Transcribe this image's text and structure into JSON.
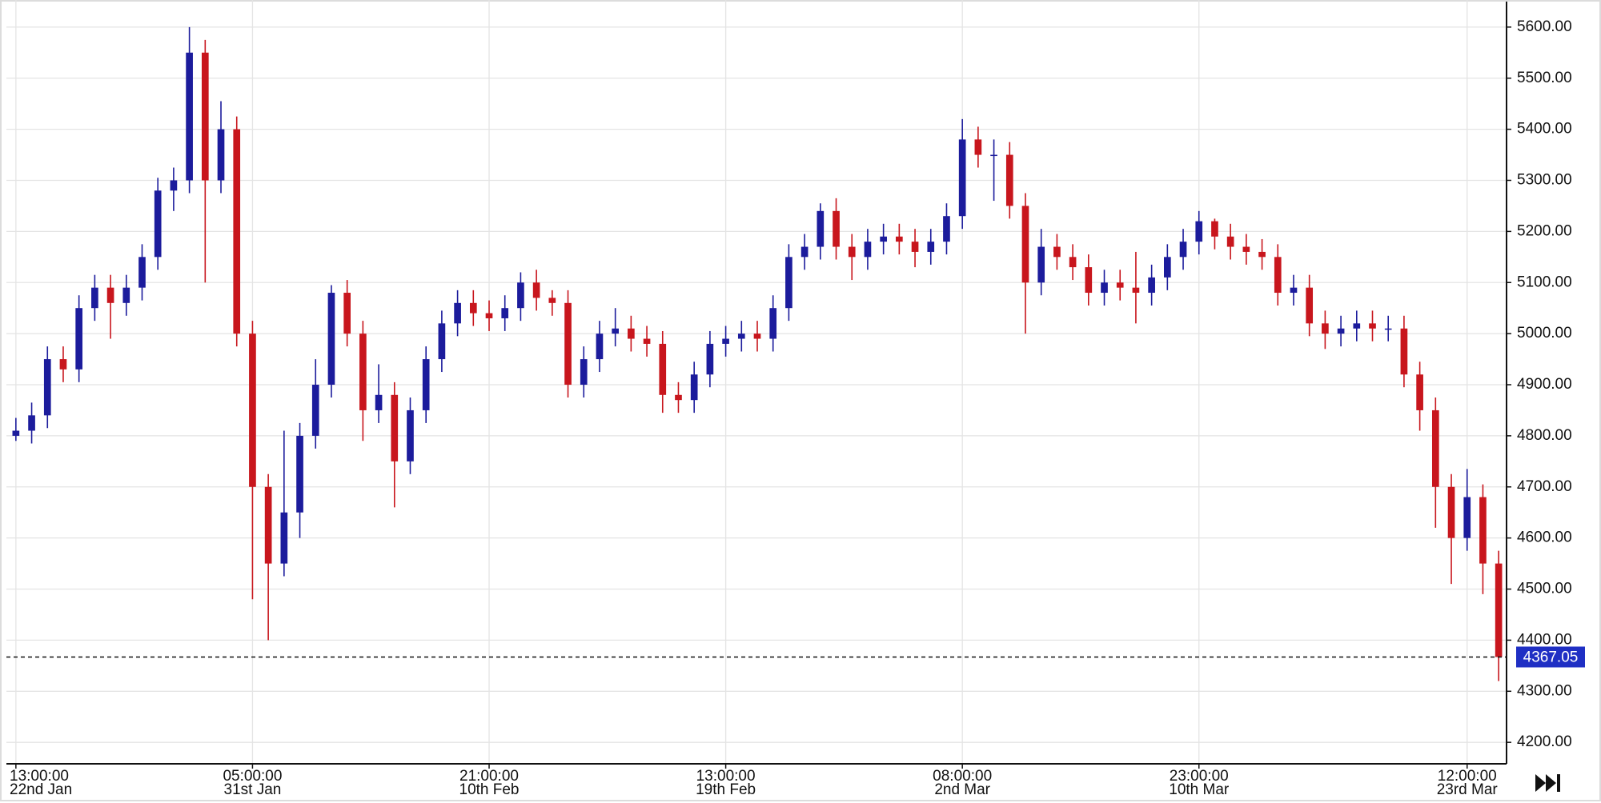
{
  "chart_data": {
    "type": "candlestick",
    "xlim": [
      -0.5,
      94.5
    ],
    "xticks": [
      {
        "value": 0,
        "label": "13:00:00",
        "date": "22nd Jan"
      },
      {
        "value": 15,
        "label": "05:00:00",
        "date": "31st Jan"
      },
      {
        "value": 30,
        "label": "21:00:00",
        "date": "10th Feb"
      },
      {
        "value": 45,
        "label": "13:00:00",
        "date": "19th Feb"
      },
      {
        "value": 60,
        "label": "08:00:00",
        "date": "2nd Mar"
      },
      {
        "value": 75,
        "label": "23:00:00",
        "date": "10th Mar"
      },
      {
        "value": 92,
        "label": "12:00:00",
        "date": "23rd Mar"
      }
    ],
    "ylim": [
      4158,
      5653
    ],
    "yticks": [
      {
        "value": 4200,
        "label": "4200.00"
      },
      {
        "value": 4300,
        "label": "4300.00"
      },
      {
        "value": 4400,
        "label": "4400.00"
      },
      {
        "value": 4500,
        "label": "4500.00"
      },
      {
        "value": 4600,
        "label": "4600.00"
      },
      {
        "value": 4700,
        "label": "4700.00"
      },
      {
        "value": 4800,
        "label": "4800.00"
      },
      {
        "value": 4900,
        "label": "4900.00"
      },
      {
        "value": 5000,
        "label": "5000.00"
      },
      {
        "value": 5100,
        "label": "5100.00"
      },
      {
        "value": 5200,
        "label": "5200.00"
      },
      {
        "value": 5300,
        "label": "5300.00"
      },
      {
        "value": 5400,
        "label": "5400.00"
      },
      {
        "value": 5500,
        "label": "5500.00"
      },
      {
        "value": 5600,
        "label": "5600.00"
      }
    ],
    "grid": true,
    "up_color": "#1c1c9c",
    "down_color": "#c8161d",
    "last_price": {
      "value": 4367.05,
      "label": "4367.05"
    },
    "last_price_color": "#1f2fc4",
    "open": [
      4800,
      4810,
      4840,
      4950,
      4930,
      5050,
      5090,
      5060,
      5090,
      5150,
      5280,
      5300,
      5550,
      5300,
      5400,
      5000,
      4700,
      4550,
      4650,
      4800,
      4900,
      5080,
      5000,
      4850,
      4880,
      4750,
      4850,
      4950,
      5020,
      5060,
      5040,
      5030,
      5050,
      5100,
      5070,
      5060,
      4900,
      4950,
      5000,
      5010,
      4990,
      4980,
      4880,
      4870,
      4920,
      4980,
      4990,
      5000,
      4990,
      5050,
      5150,
      5170,
      5240,
      5170,
      5150,
      5180,
      5190,
      5180,
      5160,
      5180,
      5230,
      5380,
      5350,
      5350,
      5250,
      5100,
      5170,
      5150,
      5130,
      5080,
      5100,
      5090,
      5080,
      5110,
      5150,
      5180,
      5220,
      5190,
      5170,
      5160,
      5150,
      5080,
      5090,
      5020,
      5000,
      5010,
      5020,
      5010,
      5010,
      4920,
      4850,
      4700,
      4600,
      4680,
      4550
    ],
    "high": [
      4835,
      4865,
      4975,
      4975,
      5075,
      5115,
      5115,
      5115,
      5175,
      5305,
      5325,
      5600,
      5575,
      5455,
      5425,
      5025,
      4725,
      4810,
      4825,
      4950,
      5095,
      5105,
      5025,
      4940,
      4905,
      4875,
      4975,
      5045,
      5085,
      5085,
      5065,
      5075,
      5120,
      5125,
      5085,
      5085,
      4975,
      5025,
      5050,
      5035,
      5015,
      5005,
      4905,
      4945,
      5005,
      5015,
      5025,
      5025,
      5075,
      5175,
      5195,
      5255,
      5265,
      5195,
      5205,
      5215,
      5215,
      5205,
      5205,
      5255,
      5420,
      5405,
      5380,
      5375,
      5275,
      5205,
      5195,
      5175,
      5155,
      5125,
      5125,
      5160,
      5135,
      5175,
      5205,
      5240,
      5225,
      5215,
      5195,
      5185,
      5175,
      5115,
      5115,
      5045,
      5035,
      5045,
      5045,
      5035,
      5035,
      4945,
      4875,
      4725,
      4735,
      4705,
      4575
    ],
    "low": [
      4790,
      4785,
      4815,
      4905,
      4905,
      5025,
      4990,
      5035,
      5065,
      5125,
      5240,
      5275,
      5100,
      5275,
      4975,
      4480,
      4400,
      4525,
      4600,
      4775,
      4875,
      4975,
      4790,
      4825,
      4660,
      4725,
      4825,
      4925,
      4995,
      5015,
      5005,
      5005,
      5025,
      5045,
      5035,
      4875,
      4875,
      4925,
      4975,
      4965,
      4955,
      4845,
      4845,
      4845,
      4895,
      4955,
      4965,
      4965,
      4965,
      5025,
      5125,
      5145,
      5145,
      5105,
      5125,
      5155,
      5155,
      5130,
      5135,
      5155,
      5205,
      5325,
      5260,
      5225,
      5000,
      5075,
      5125,
      5105,
      5055,
      5055,
      5065,
      5020,
      5055,
      5085,
      5125,
      5155,
      5165,
      5145,
      5135,
      5125,
      5055,
      5055,
      4995,
      4970,
      4975,
      4985,
      4985,
      4985,
      4895,
      4810,
      4620,
      4510,
      4575,
      4490,
      4320
    ],
    "close": [
      4810,
      4840,
      4950,
      4930,
      5050,
      5090,
      5060,
      5090,
      5150,
      5280,
      5300,
      5550,
      5300,
      5400,
      5000,
      4700,
      4550,
      4650,
      4800,
      4900,
      5080,
      5000,
      4850,
      4880,
      4750,
      4850,
      4950,
      5020,
      5060,
      5040,
      5030,
      5050,
      5100,
      5070,
      5060,
      4900,
      4950,
      5000,
      5010,
      4990,
      4980,
      4880,
      4870,
      4920,
      4980,
      4990,
      5000,
      4990,
      5050,
      5150,
      5170,
      5240,
      5170,
      5150,
      5180,
      5190,
      5180,
      5160,
      5180,
      5230,
      5380,
      5350,
      5350,
      5250,
      5100,
      5170,
      5150,
      5130,
      5080,
      5100,
      5090,
      5080,
      5110,
      5150,
      5180,
      5220,
      5190,
      5170,
      5160,
      5150,
      5080,
      5090,
      5020,
      5000,
      5010,
      5020,
      5010,
      5010,
      4920,
      4850,
      4700,
      4600,
      4680,
      4550,
      4367.05
    ]
  }
}
